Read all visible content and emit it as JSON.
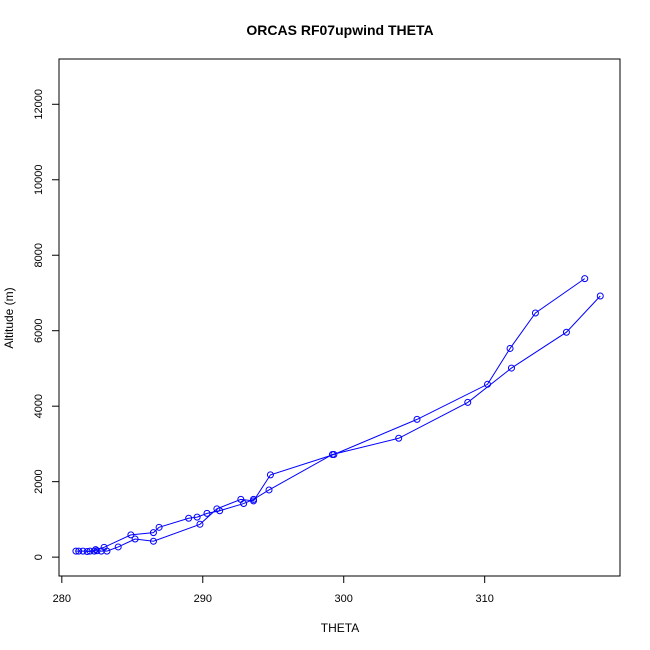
{
  "chart_data": {
    "type": "scatter",
    "title": "ORCAS RF07upwind THETA",
    "xlabel": "THETA",
    "ylabel": "Altitude (m)",
    "xlim": [
      279.8,
      319.6
    ],
    "ylim": [
      -500,
      13200
    ],
    "x_ticks": [
      280,
      290,
      300,
      310
    ],
    "y_ticks": [
      0,
      2000,
      4000,
      6000,
      8000,
      10000,
      12000
    ],
    "grid": false,
    "legend": "none",
    "series": [
      {
        "color": "#0000ff",
        "marker": "open-circle",
        "line": true,
        "points": [
          {
            "x": 281.0,
            "y": 160
          },
          {
            "x": 281.2,
            "y": 160
          },
          {
            "x": 281.5,
            "y": 160
          },
          {
            "x": 282.0,
            "y": 160
          },
          {
            "x": 282.5,
            "y": 170
          },
          {
            "x": 282.8,
            "y": 160
          },
          {
            "x": 283.2,
            "y": 160
          },
          {
            "x": 284.0,
            "y": 270
          },
          {
            "x": 285.2,
            "y": 480
          },
          {
            "x": 286.5,
            "y": 420
          },
          {
            "x": 289.8,
            "y": 870
          },
          {
            "x": 291.0,
            "y": 1280
          },
          {
            "x": 292.7,
            "y": 1530
          },
          {
            "x": 293.6,
            "y": 1490
          },
          {
            "x": 294.8,
            "y": 2180
          },
          {
            "x": 299.3,
            "y": 2720
          },
          {
            "x": 305.2,
            "y": 3650
          },
          {
            "x": 310.2,
            "y": 4580
          },
          {
            "x": 311.8,
            "y": 5530
          },
          {
            "x": 313.6,
            "y": 6470
          },
          {
            "x": 317.1,
            "y": 7380
          }
        ]
      },
      {
        "color": "#0000ff",
        "marker": "open-circle",
        "line": true,
        "points": [
          {
            "x": 318.2,
            "y": 6920
          },
          {
            "x": 315.8,
            "y": 5960
          },
          {
            "x": 311.9,
            "y": 5010
          },
          {
            "x": 308.8,
            "y": 4100
          },
          {
            "x": 303.9,
            "y": 3150
          },
          {
            "x": 299.2,
            "y": 2720
          },
          {
            "x": 294.7,
            "y": 1780
          },
          {
            "x": 293.6,
            "y": 1530
          },
          {
            "x": 292.9,
            "y": 1420
          },
          {
            "x": 291.2,
            "y": 1230
          },
          {
            "x": 290.3,
            "y": 1160
          },
          {
            "x": 289.6,
            "y": 1060
          },
          {
            "x": 289.0,
            "y": 1030
          },
          {
            "x": 286.9,
            "y": 790
          },
          {
            "x": 286.5,
            "y": 650
          },
          {
            "x": 284.9,
            "y": 590
          },
          {
            "x": 283.0,
            "y": 260
          },
          {
            "x": 282.4,
            "y": 200
          },
          {
            "x": 282.3,
            "y": 160
          },
          {
            "x": 281.8,
            "y": 150
          }
        ]
      }
    ]
  }
}
